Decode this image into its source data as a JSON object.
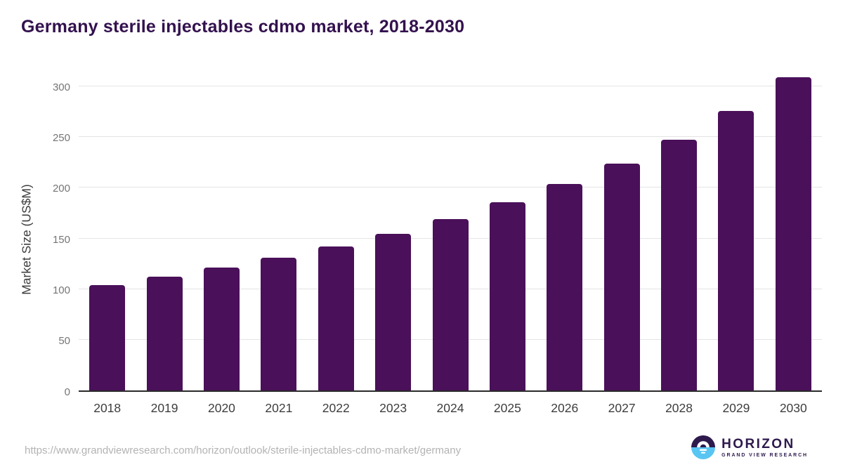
{
  "chart_data": {
    "type": "bar",
    "title": "Germany sterile injectables cdmo market, 2018-2030",
    "categories": [
      "2018",
      "2019",
      "2020",
      "2021",
      "2022",
      "2023",
      "2024",
      "2025",
      "2026",
      "2027",
      "2028",
      "2029",
      "2030"
    ],
    "values": [
      104,
      112,
      121,
      131,
      142,
      154,
      169,
      185,
      203,
      223,
      247,
      275,
      308
    ],
    "xlabel": "",
    "ylabel": "Market Size (US$M)",
    "ylim": [
      0,
      300
    ],
    "yticks": [
      0,
      50,
      100,
      150,
      200,
      250,
      300
    ],
    "grid": "horizontal-only",
    "legend": "none",
    "bar_color": "#4a1059",
    "title_color": "#33114e",
    "gridline_color": "#e4e4e4",
    "axis_line_color": "#2b2b2b"
  },
  "footer": {
    "source_url": "https://www.grandviewresearch.com/horizon/outlook/sterile-injectables-cdmo-market/germany",
    "logo": {
      "brand": "HORIZON",
      "tagline": "GRAND VIEW RESEARCH",
      "icon": "horizon-sun-over-water",
      "brand_color": "#2e1a4d",
      "icon_blue": "#59c5f2"
    }
  }
}
